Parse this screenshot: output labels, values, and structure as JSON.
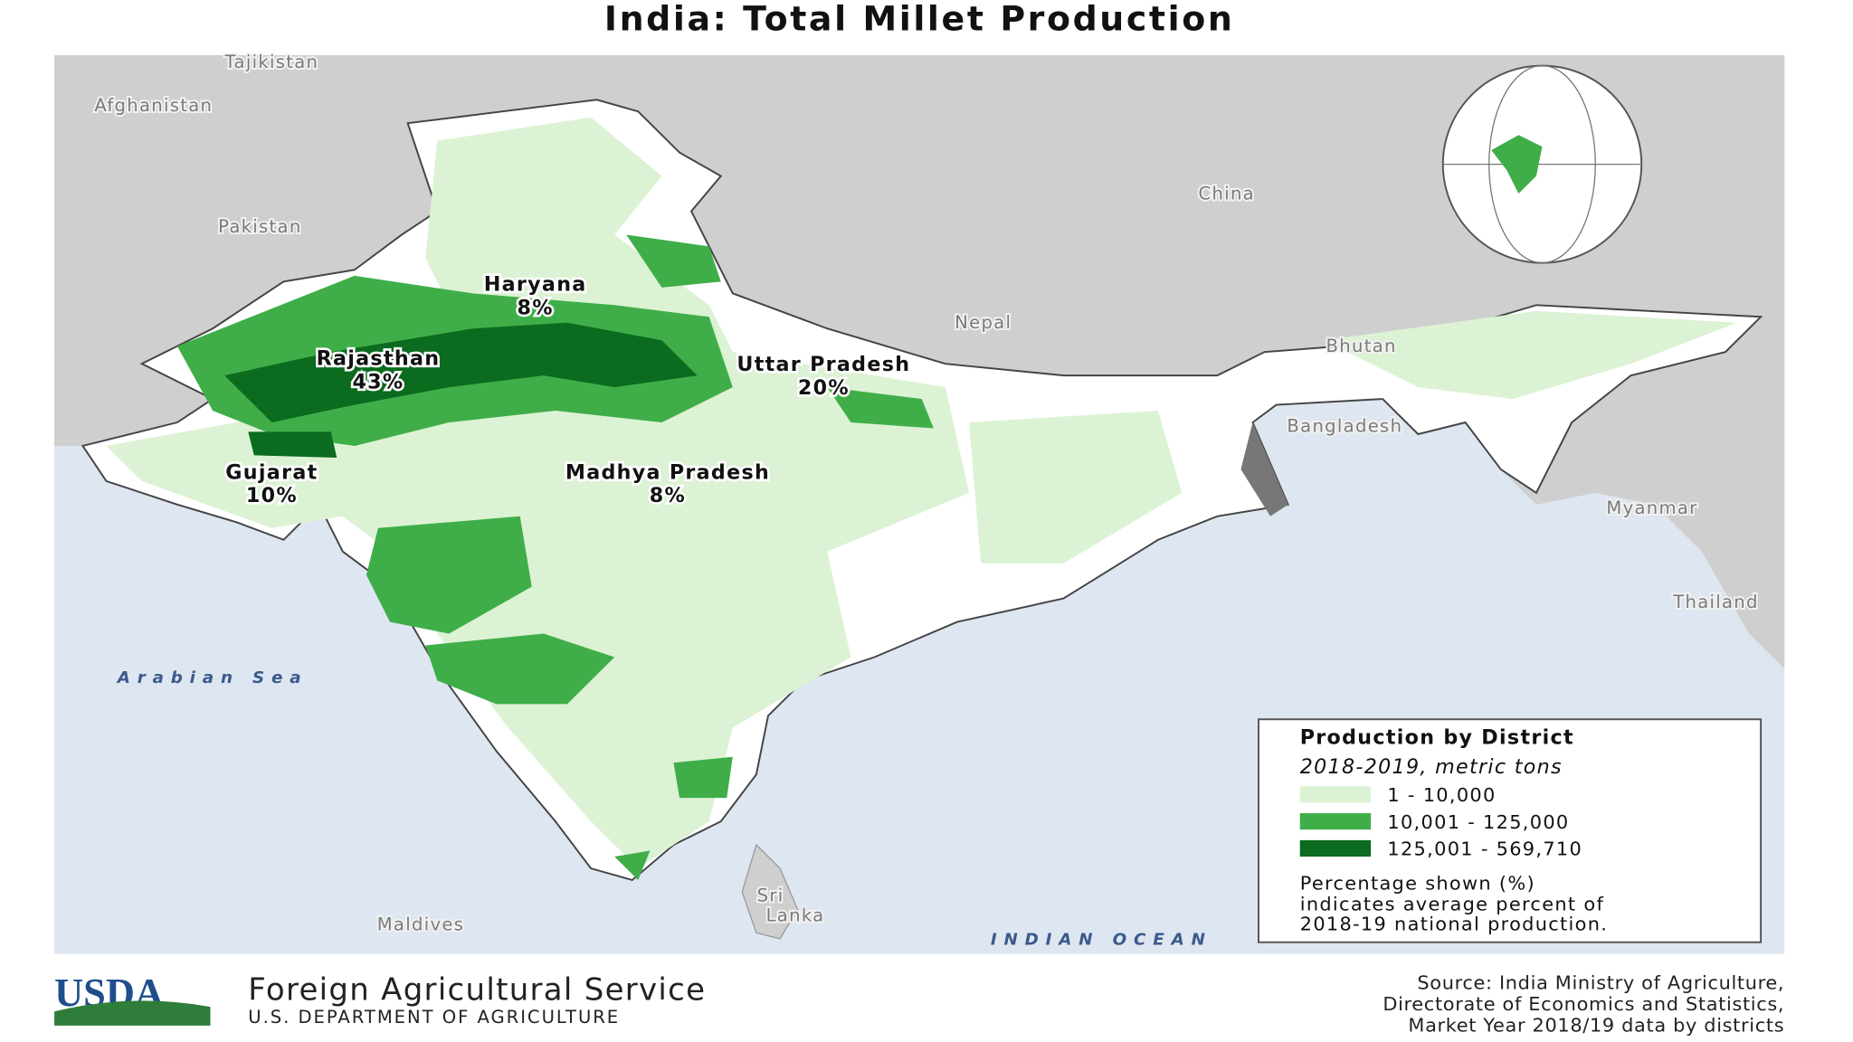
{
  "header": {
    "title": "India: Total Millet Production"
  },
  "map": {
    "countries": [
      "Tajikistan",
      "Afghanistan",
      "Pakistan",
      "China",
      "Nepal",
      "Bhutan",
      "Bangladesh",
      "Myanmar",
      "Thailand",
      "Maldives"
    ],
    "sri_lanka": [
      "Sri",
      "Lanka"
    ],
    "seas": [
      "Arabian Sea",
      "INDIAN OCEAN"
    ],
    "states": [
      {
        "name": "Haryana",
        "share": "8%"
      },
      {
        "name": "Rajasthan",
        "share": "43%"
      },
      {
        "name": "Uttar Pradesh",
        "share": "20%"
      },
      {
        "name": "Gujarat",
        "share": "10%"
      },
      {
        "name": "Madhya Pradesh",
        "share": "8%"
      }
    ]
  },
  "legend": {
    "title": "Production by District",
    "subtitle": "2018-2019, metric tons",
    "classes": [
      {
        "label": "1 - 10,000",
        "color": "#dcf2d4"
      },
      {
        "label": "10,001 - 125,000",
        "color": "#3fae49"
      },
      {
        "label": "125,001 - 569,710",
        "color": "#0b6b1e"
      }
    ],
    "note": [
      "Percentage shown (%)",
      "indicates average percent of",
      "2018-19 national production."
    ]
  },
  "footer": {
    "logo": "USDA",
    "agency": "Foreign Agricultural Service",
    "department": "U.S. DEPARTMENT OF AGRICULTURE",
    "source": [
      "Source: India Ministry of Agriculture,",
      "Directorate of Economics and Statistics,",
      "Market Year 2018/19 data by districts"
    ]
  }
}
